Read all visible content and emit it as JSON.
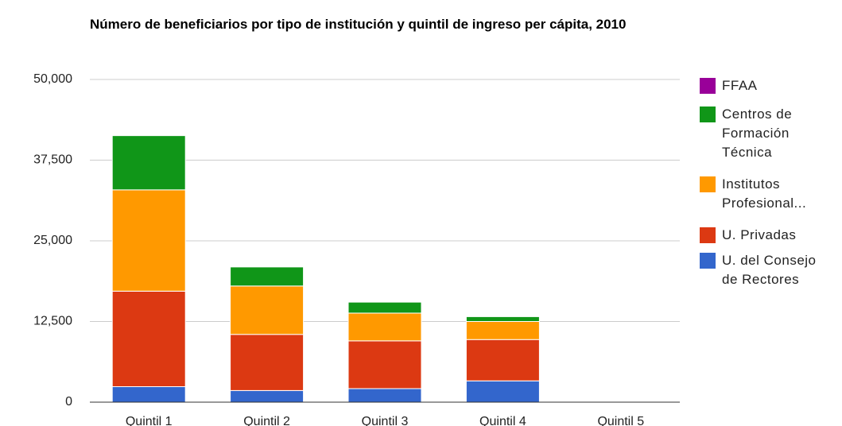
{
  "chart_data": {
    "type": "stacked_bar",
    "title": "Número de beneficiarios por tipo de institución y quintil de ingreso per cápita, 2010",
    "categories": [
      "Quintil 1",
      "Quintil 2",
      "Quintil 3",
      "Quintil 4",
      "Quintil 5"
    ],
    "series": [
      {
        "name": "U. del Consejo de Rectores",
        "color": "#3366cc",
        "values": [
          2400,
          1800,
          2100,
          3300,
          0
        ]
      },
      {
        "name": "U. Privadas",
        "color": "#dc3912",
        "values": [
          14800,
          8700,
          7400,
          6400,
          0
        ]
      },
      {
        "name": "Institutos Profesional...",
        "color": "#ff9900",
        "values": [
          15700,
          7500,
          4300,
          2800,
          0
        ]
      },
      {
        "name": "Centros de Formación Técnica",
        "color": "#109618",
        "values": [
          8400,
          2950,
          1700,
          750,
          0
        ]
      },
      {
        "name": "FFAA",
        "color": "#990099",
        "values": [
          0,
          0,
          0,
          0,
          0
        ]
      }
    ],
    "ylim": [
      0,
      50000
    ],
    "yticks": [
      0,
      {
        "value": 12500,
        "label": "12,500"
      },
      {
        "value": 25000,
        "label": "25,000"
      },
      {
        "value": 37500,
        "label": "37,500"
      },
      {
        "value": 50000,
        "label": "50,000"
      }
    ],
    "grid": true,
    "legend": "right"
  }
}
